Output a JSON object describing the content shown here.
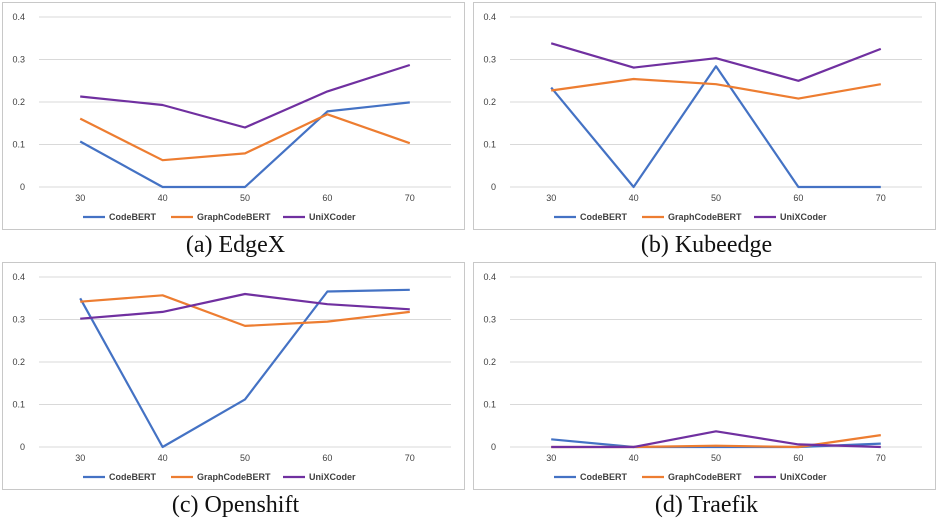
{
  "colors": {
    "CodeBERT": "#4472C4",
    "GraphCodeBERT": "#ED7D31",
    "UniXCoder": "#7030A0",
    "grid": "#d9d9d9"
  },
  "chart_data": [
    {
      "type": "line",
      "title": "",
      "caption": "(a) EdgeX",
      "categories": [
        "30",
        "40",
        "50",
        "60",
        "70"
      ],
      "y_ticks": [
        "0",
        "0.1",
        "0.2",
        "0.3",
        "0.4"
      ],
      "ylim": [
        0,
        0.4
      ],
      "grid": true,
      "legend_position": "bottom",
      "series": [
        {
          "name": "CodeBERT",
          "values": [
            0.107,
            0.0,
            0.0,
            0.178,
            0.199
          ]
        },
        {
          "name": "GraphCodeBERT",
          "values": [
            0.161,
            0.063,
            0.079,
            0.171,
            0.103
          ]
        },
        {
          "name": "UniXCoder",
          "values": [
            0.213,
            0.193,
            0.14,
            0.225,
            0.287
          ]
        }
      ]
    },
    {
      "type": "line",
      "title": "",
      "caption": "(b) Kubeedge",
      "categories": [
        "30",
        "40",
        "50",
        "60",
        "70"
      ],
      "y_ticks": [
        "0",
        "0.1",
        "0.2",
        "0.3",
        "0.4"
      ],
      "ylim": [
        0,
        0.4
      ],
      "grid": true,
      "legend_position": "bottom",
      "series": [
        {
          "name": "CodeBERT",
          "values": [
            0.234,
            0.0,
            0.284,
            0.0,
            0.0
          ]
        },
        {
          "name": "GraphCodeBERT",
          "values": [
            0.227,
            0.254,
            0.242,
            0.208,
            0.242
          ]
        },
        {
          "name": "UniXCoder",
          "values": [
            0.338,
            0.281,
            0.303,
            0.25,
            0.325
          ]
        }
      ]
    },
    {
      "type": "line",
      "title": "",
      "caption": "(c) Openshift",
      "categories": [
        "30",
        "40",
        "50",
        "60",
        "70"
      ],
      "y_ticks": [
        "0",
        "0.1",
        "0.2",
        "0.3",
        "0.4"
      ],
      "ylim": [
        0,
        0.4
      ],
      "grid": true,
      "legend_position": "bottom",
      "series": [
        {
          "name": "CodeBERT",
          "values": [
            0.35,
            0.0,
            0.112,
            0.366,
            0.37
          ]
        },
        {
          "name": "GraphCodeBERT",
          "values": [
            0.342,
            0.357,
            0.285,
            0.295,
            0.318
          ]
        },
        {
          "name": "UniXCoder",
          "values": [
            0.302,
            0.318,
            0.36,
            0.336,
            0.324
          ]
        }
      ]
    },
    {
      "type": "line",
      "title": "",
      "caption": "(d) Traefik",
      "categories": [
        "30",
        "40",
        "50",
        "60",
        "70"
      ],
      "y_ticks": [
        "0",
        "0.1",
        "0.2",
        "0.3",
        "0.4"
      ],
      "ylim": [
        0,
        0.4
      ],
      "grid": true,
      "legend_position": "bottom",
      "series": [
        {
          "name": "CodeBERT",
          "values": [
            0.018,
            0.0,
            0.0,
            0.0,
            0.008
          ]
        },
        {
          "name": "GraphCodeBERT",
          "values": [
            0.0,
            0.0,
            0.003,
            0.0,
            0.028
          ]
        },
        {
          "name": "UniXCoder",
          "values": [
            0.0,
            0.0,
            0.037,
            0.006,
            0.0
          ]
        }
      ]
    }
  ]
}
